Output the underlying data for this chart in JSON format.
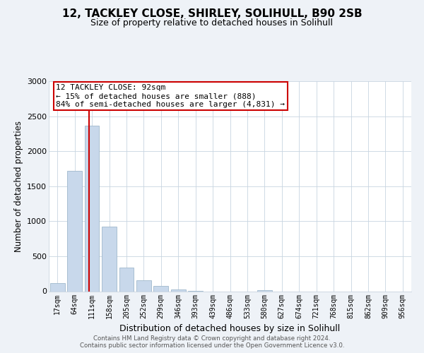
{
  "title1": "12, TACKLEY CLOSE, SHIRLEY, SOLIHULL, B90 2SB",
  "title2": "Size of property relative to detached houses in Solihull",
  "xlabel": "Distribution of detached houses by size in Solihull",
  "ylabel": "Number of detached properties",
  "bar_labels": [
    "17sqm",
    "64sqm",
    "111sqm",
    "158sqm",
    "205sqm",
    "252sqm",
    "299sqm",
    "346sqm",
    "393sqm",
    "439sqm",
    "486sqm",
    "533sqm",
    "580sqm",
    "627sqm",
    "674sqm",
    "721sqm",
    "768sqm",
    "815sqm",
    "862sqm",
    "909sqm",
    "956sqm"
  ],
  "bar_values": [
    120,
    1720,
    2360,
    920,
    340,
    155,
    80,
    30,
    10,
    0,
    0,
    0,
    20,
    0,
    0,
    0,
    0,
    0,
    0,
    0,
    0
  ],
  "bar_color": "#c8d8eb",
  "bar_edge_color": "#a0b8cc",
  "property_line_color": "#cc0000",
  "annotation_line1": "12 TACKLEY CLOSE: 92sqm",
  "annotation_line2": "← 15% of detached houses are smaller (888)",
  "annotation_line3": "84% of semi-detached houses are larger (4,831) →",
  "annotation_box_edge": "#cc0000",
  "ylim": [
    0,
    3000
  ],
  "yticks": [
    0,
    500,
    1000,
    1500,
    2000,
    2500,
    3000
  ],
  "footer_text": "Contains HM Land Registry data © Crown copyright and database right 2024.\nContains public sector information licensed under the Open Government Licence v3.0.",
  "background_color": "#eef2f7",
  "plot_background": "white",
  "grid_color": "#c8d4e0"
}
